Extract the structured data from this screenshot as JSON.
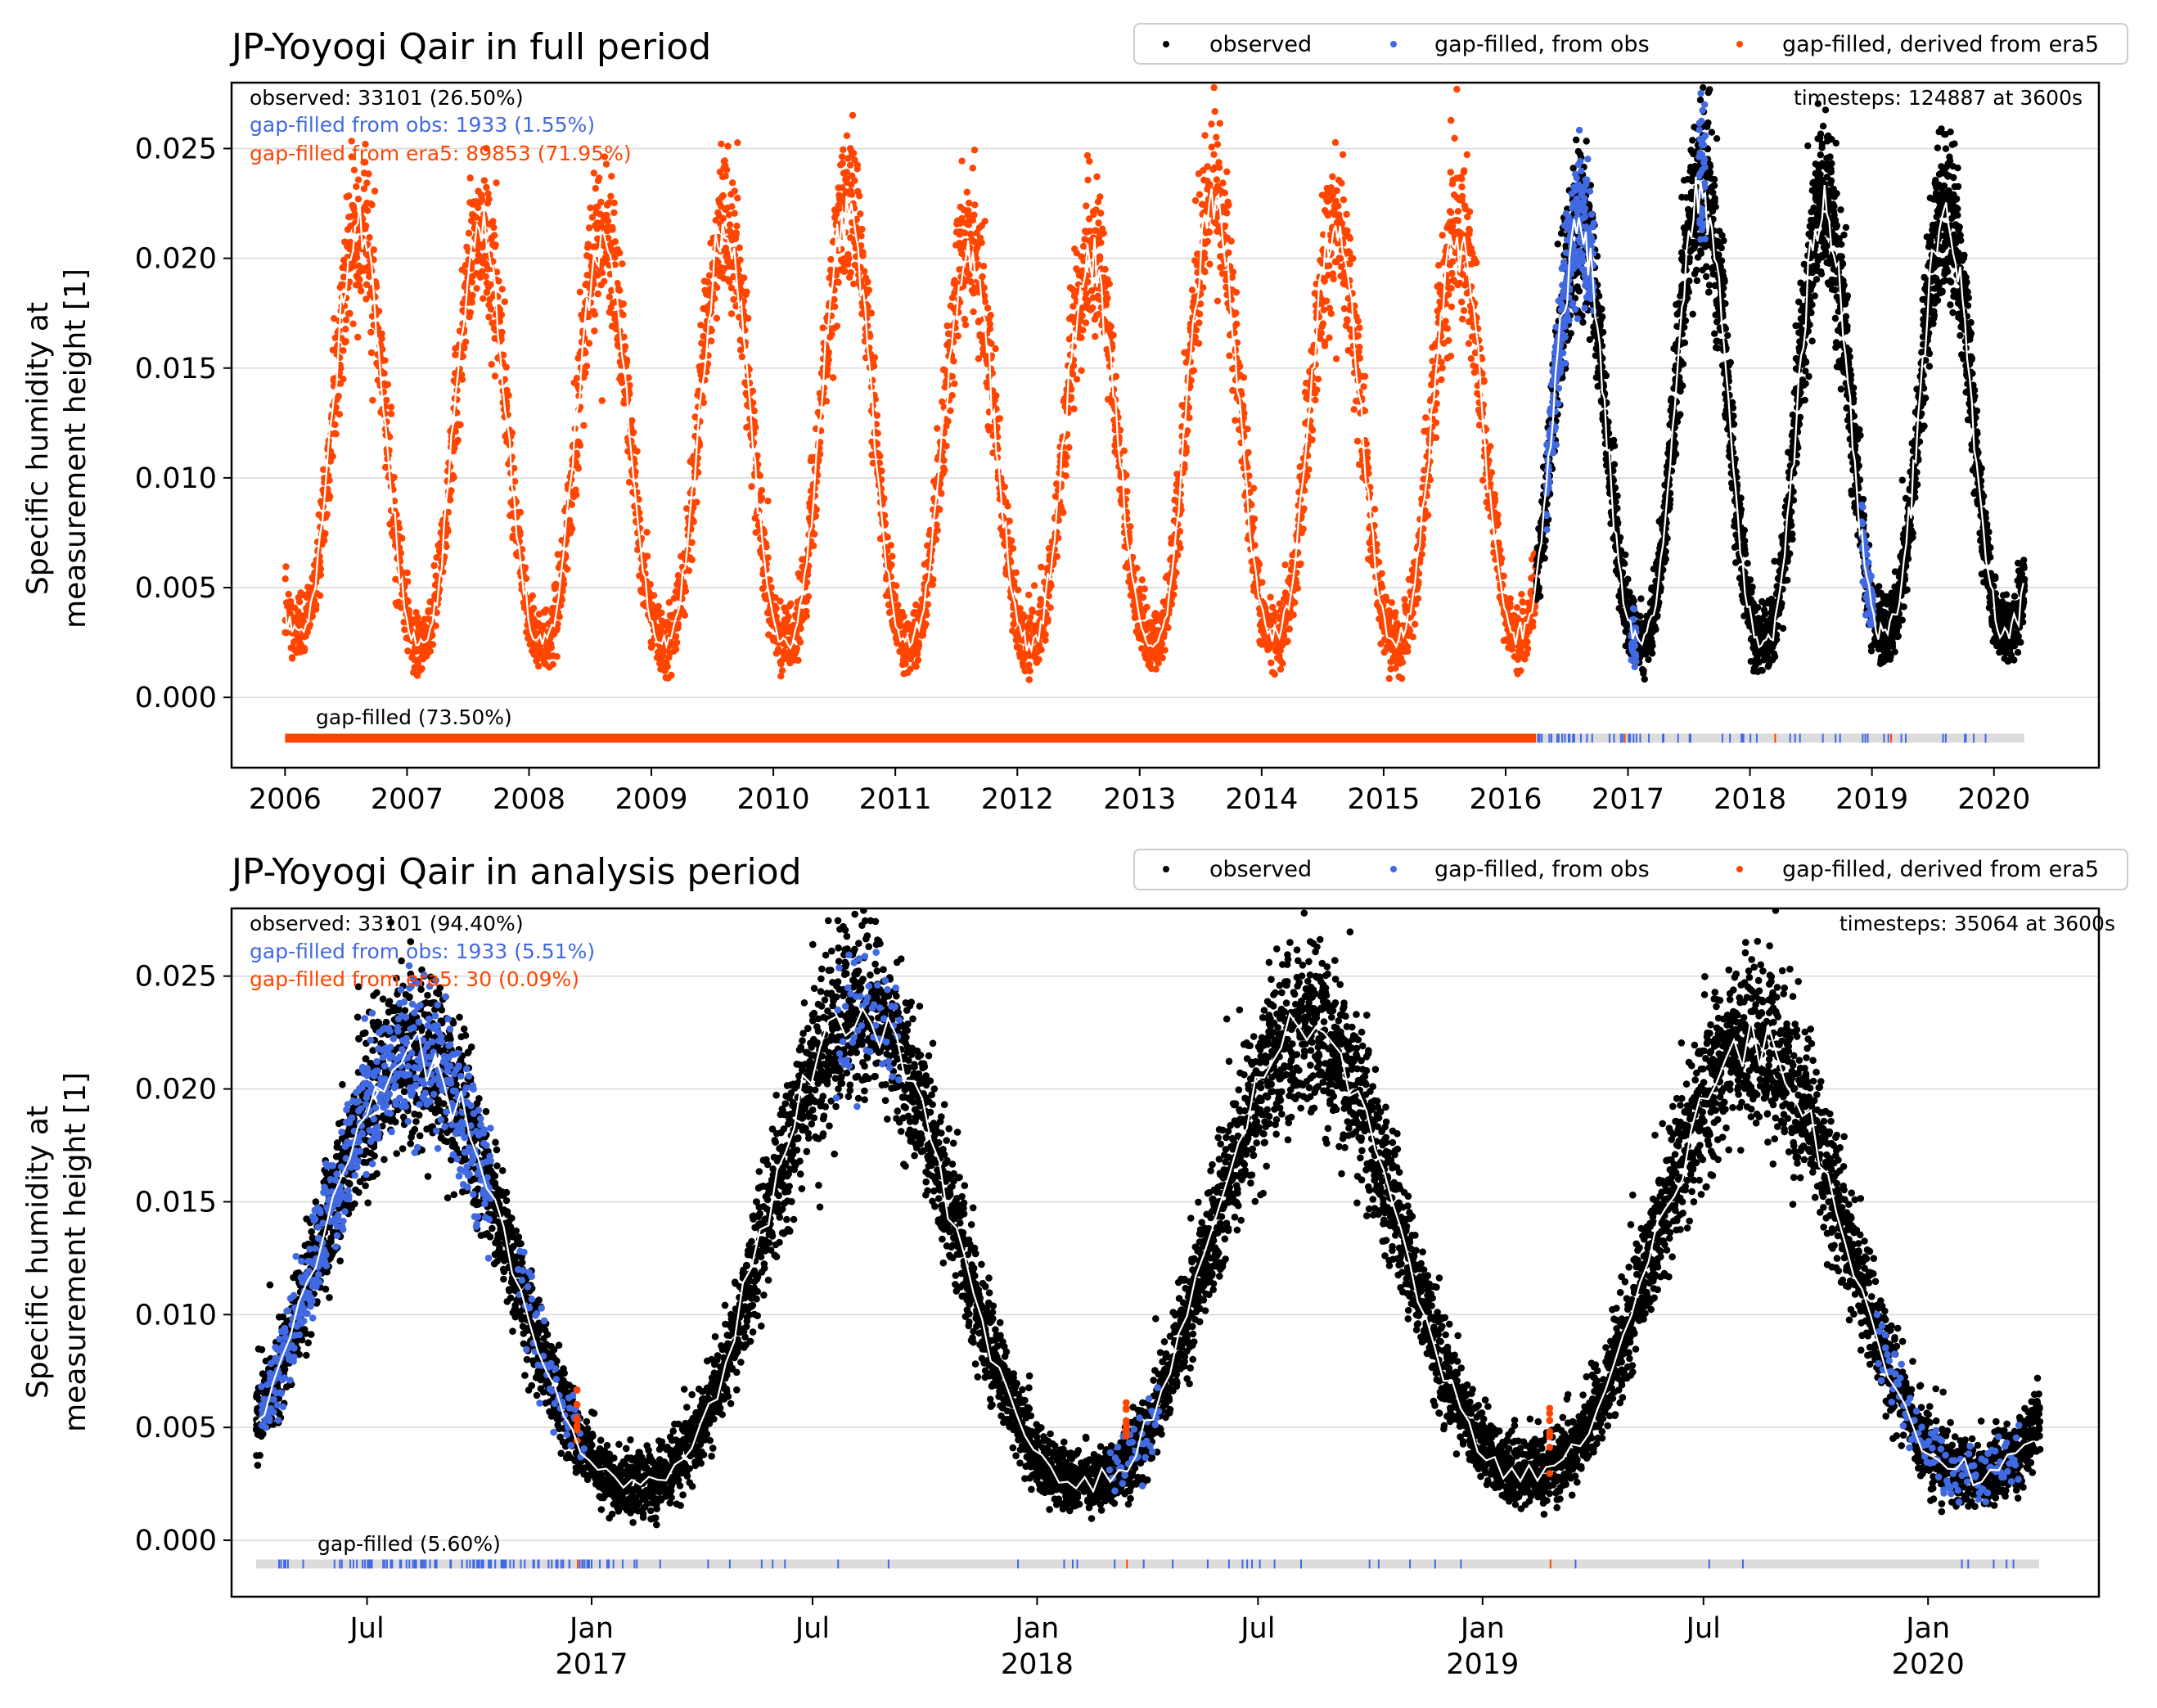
{
  "colors": {
    "observed": "#000000",
    "gap_obs": "#4169e1",
    "gap_era5": "#ff4500",
    "mean_line": "#ffffff",
    "bar_background": "#dcdcdc",
    "grid": "#d9d9d9"
  },
  "chart_data": [
    {
      "type": "scatter",
      "title": "JP-Yoyogi Qair in full period",
      "ylabel_lines": [
        "Specific humidity at",
        "measurement height [1]"
      ],
      "ylim": [
        -0.0032,
        0.028
      ],
      "yticks": [
        0.0,
        0.005,
        0.01,
        0.015,
        0.02,
        0.025
      ],
      "ytick_labels": [
        "0.000",
        "0.005",
        "0.010",
        "0.015",
        "0.020",
        "0.025"
      ],
      "xlim": [
        "2005-07-25",
        "2020-11-10"
      ],
      "xtick_labels": [
        "2006",
        "2007",
        "2008",
        "2009",
        "2010",
        "2011",
        "2012",
        "2013",
        "2014",
        "2015",
        "2016",
        "2017",
        "2018",
        "2019",
        "2020"
      ],
      "grid": "horizontal",
      "legend": {
        "placement": "top-right, above axes",
        "entries": [
          "observed",
          "gap-filled, from obs",
          "gap-filled, derived from era5"
        ]
      },
      "annotations": {
        "observed": "observed: 33101 (26.50%)",
        "gap_obs": "gap-filled from obs: 1933 (1.55%)",
        "gap_era5": "gap-filled from era5: 89853 (71.95%)",
        "timesteps": "timesteps: 124887 at 3600s",
        "gapfilled": "gap-filled (73.50%)"
      },
      "series": [
        {
          "name": "observed",
          "range": [
            "2016-04-01",
            "2020-04-01"
          ]
        },
        {
          "name": "gap-filled, from obs",
          "range": [
            "2016-04-01",
            "2020-04-01"
          ]
        },
        {
          "name": "gap-filled, derived from era5",
          "range": [
            "2006-01-01",
            "2016-04-01"
          ]
        }
      ],
      "approx_peaks": {
        "2006": 0.0215,
        "2007": 0.0213,
        "2008": 0.021,
        "2009": 0.0212,
        "2010": 0.0222,
        "2011": 0.0205,
        "2012": 0.0203,
        "2013": 0.0228,
        "2014": 0.0215,
        "2015": 0.021,
        "2016": 0.0215,
        "2017": 0.0235,
        "2018": 0.0225,
        "2019": 0.0222
      },
      "approx_troughs": {
        "2006": 0.003,
        "2007": 0.0025,
        "2008": 0.0025,
        "2009": 0.0025,
        "2010": 0.0025,
        "2011": 0.0025,
        "2012": 0.0025,
        "2013": 0.0025,
        "2014": 0.0028,
        "2015": 0.0025,
        "2016": 0.0028,
        "2017": 0.0025,
        "2018": 0.0025,
        "2019": 0.003,
        "2020": 0.003
      }
    },
    {
      "type": "scatter",
      "title": "JP-Yoyogi Qair in analysis period",
      "ylabel_lines": [
        "Specific humidity at",
        "measurement height [1]"
      ],
      "ylim": [
        -0.0025,
        0.028
      ],
      "yticks": [
        0.0,
        0.005,
        0.01,
        0.015,
        0.02,
        0.025
      ],
      "ytick_labels": [
        "0.000",
        "0.005",
        "0.010",
        "0.015",
        "0.020",
        "0.025"
      ],
      "xlim": [
        "2016-03-12",
        "2020-05-20"
      ],
      "xtick_labels": [
        {
          "month": "Jul",
          "year": ""
        },
        {
          "month": "Jan",
          "year": "2017"
        },
        {
          "month": "Jul",
          "year": ""
        },
        {
          "month": "Jan",
          "year": "2018"
        },
        {
          "month": "Jul",
          "year": ""
        },
        {
          "month": "Jan",
          "year": "2019"
        },
        {
          "month": "Jul",
          "year": ""
        },
        {
          "month": "Jan",
          "year": "2020"
        }
      ],
      "grid": "horizontal",
      "legend": {
        "placement": "top-right, above axes",
        "entries": [
          "observed",
          "gap-filled, from obs",
          "gap-filled, derived from era5"
        ]
      },
      "annotations": {
        "observed": "observed: 33101 (94.40%)",
        "gap_obs": "gap-filled from obs: 1933 (5.51%)",
        "gap_era5": "gap-filled from era5: 30 (0.09%)",
        "timesteps": "timesteps: 35064 at 3600s",
        "gapfilled": "gap-filled (5.60%)"
      },
      "series": [
        {
          "name": "observed",
          "range": [
            "2016-04-01",
            "2020-04-01"
          ]
        },
        {
          "name": "gap-filled, from obs",
          "range": [
            "2016-04-01",
            "2020-04-01"
          ]
        },
        {
          "name": "gap-filled, derived from era5",
          "dates": [
            "2016-12-20",
            "2018-03-15",
            "2019-02-25"
          ]
        }
      ]
    }
  ]
}
